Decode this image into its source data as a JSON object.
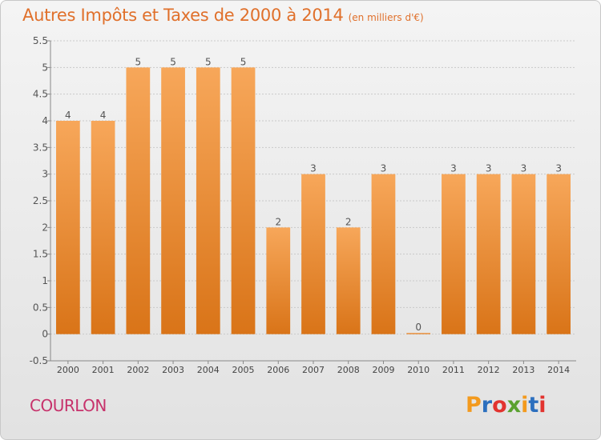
{
  "title": "Autres Impôts et Taxes de 2000 à 2014",
  "unit": "(en milliers d'€)",
  "commune": "COURLON",
  "logo": {
    "letters": [
      "P",
      "r",
      "o",
      "x",
      "i",
      "t",
      "i"
    ],
    "colors": [
      "#f39a1e",
      "#2c6fbe",
      "#e2332f",
      "#5aa12f",
      "#f39a1e",
      "#2c6fbe",
      "#e2332f"
    ]
  },
  "chart_data": {
    "type": "bar",
    "categories": [
      "2000",
      "2001",
      "2002",
      "2003",
      "2004",
      "2005",
      "2006",
      "2007",
      "2008",
      "2009",
      "2010",
      "2011",
      "2012",
      "2013",
      "2014"
    ],
    "values": [
      4,
      4,
      5,
      5,
      5,
      5,
      2,
      3,
      2,
      3,
      0,
      3,
      3,
      3,
      3
    ],
    "data_labels": [
      "4",
      "4",
      "5",
      "5",
      "5",
      "5",
      "2",
      "3",
      "2",
      "3",
      "0",
      "3",
      "3",
      "3",
      "3"
    ],
    "yticks": [
      "5.5",
      "5",
      "4.5",
      "4",
      "3.5",
      "3",
      "2.5",
      "2",
      "1.5",
      "1",
      "0.5",
      "0",
      "-0.5"
    ],
    "ylim": [
      -0.5,
      5.5
    ],
    "grid": true,
    "bar_color": "#f0902f"
  }
}
